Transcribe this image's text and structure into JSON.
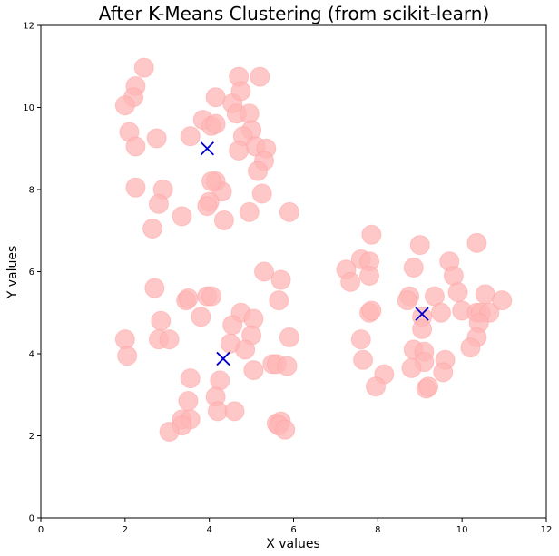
{
  "chart_data": {
    "type": "scatter",
    "title": "After K-Means Clustering (from scikit-learn)",
    "xlabel": "X values",
    "ylabel": "Y values",
    "xlim": [
      0,
      12
    ],
    "ylim": [
      0,
      12
    ],
    "xticks": [
      0,
      2,
      4,
      6,
      8,
      10,
      12
    ],
    "yticks": [
      0,
      2,
      4,
      6,
      8,
      10,
      12
    ],
    "grid": false,
    "series": [
      {
        "role": "points",
        "color": "#ffb6b6",
        "marker": "circle",
        "points": [
          [
            2.45,
            10.97
          ],
          [
            2.25,
            10.52
          ],
          [
            2.2,
            10.25
          ],
          [
            2.0,
            10.05
          ],
          [
            2.1,
            9.4
          ],
          [
            2.25,
            9.05
          ],
          [
            2.75,
            9.25
          ],
          [
            3.85,
            9.7
          ],
          [
            4.05,
            9.55
          ],
          [
            4.15,
            9.6
          ],
          [
            4.15,
            10.25
          ],
          [
            4.55,
            10.1
          ],
          [
            4.65,
            9.85
          ],
          [
            4.7,
            10.75
          ],
          [
            4.75,
            10.4
          ],
          [
            5.2,
            10.75
          ],
          [
            4.95,
            9.85
          ],
          [
            5.0,
            9.45
          ],
          [
            4.8,
            9.3
          ],
          [
            5.1,
            9.05
          ],
          [
            5.35,
            9.0
          ],
          [
            4.7,
            8.95
          ],
          [
            3.55,
            9.3
          ],
          [
            5.3,
            8.7
          ],
          [
            5.15,
            8.45
          ],
          [
            2.25,
            8.05
          ],
          [
            2.9,
            8.0
          ],
          [
            2.8,
            7.65
          ],
          [
            4.15,
            8.2
          ],
          [
            4.3,
            7.95
          ],
          [
            4.05,
            8.2
          ],
          [
            4.0,
            7.7
          ],
          [
            3.95,
            7.6
          ],
          [
            5.25,
            7.9
          ],
          [
            3.35,
            7.35
          ],
          [
            4.35,
            7.25
          ],
          [
            4.95,
            7.45
          ],
          [
            5.9,
            7.45
          ],
          [
            2.65,
            7.05
          ],
          [
            2.7,
            5.6
          ],
          [
            3.45,
            5.3
          ],
          [
            3.5,
            5.35
          ],
          [
            3.95,
            5.4
          ],
          [
            4.05,
            5.4
          ],
          [
            3.8,
            4.9
          ],
          [
            4.75,
            5.0
          ],
          [
            5.05,
            4.85
          ],
          [
            4.55,
            4.7
          ],
          [
            5.3,
            6.0
          ],
          [
            5.7,
            5.8
          ],
          [
            5.65,
            5.3
          ],
          [
            5.9,
            4.4
          ],
          [
            5.0,
            4.45
          ],
          [
            4.5,
            4.25
          ],
          [
            4.85,
            4.1
          ],
          [
            2.85,
            4.8
          ],
          [
            2.8,
            4.35
          ],
          [
            3.05,
            4.35
          ],
          [
            2.0,
            4.35
          ],
          [
            2.05,
            3.95
          ],
          [
            5.05,
            3.6
          ],
          [
            5.5,
            3.75
          ],
          [
            5.6,
            3.75
          ],
          [
            5.85,
            3.7
          ],
          [
            3.55,
            3.4
          ],
          [
            4.25,
            3.35
          ],
          [
            3.5,
            2.85
          ],
          [
            4.15,
            2.95
          ],
          [
            4.2,
            2.6
          ],
          [
            4.6,
            2.6
          ],
          [
            3.35,
            2.4
          ],
          [
            3.55,
            2.4
          ],
          [
            3.35,
            2.25
          ],
          [
            3.05,
            2.1
          ],
          [
            5.6,
            2.3
          ],
          [
            5.7,
            2.35
          ],
          [
            5.65,
            2.25
          ],
          [
            5.8,
            2.15
          ],
          [
            7.85,
            6.9
          ],
          [
            7.6,
            6.3
          ],
          [
            7.8,
            6.25
          ],
          [
            7.25,
            6.05
          ],
          [
            7.35,
            5.75
          ],
          [
            7.8,
            5.9
          ],
          [
            7.8,
            5.0
          ],
          [
            7.85,
            5.05
          ],
          [
            9.0,
            6.65
          ],
          [
            8.85,
            6.1
          ],
          [
            8.75,
            5.4
          ],
          [
            8.7,
            5.3
          ],
          [
            9.35,
            5.4
          ],
          [
            9.05,
            4.9
          ],
          [
            9.05,
            4.6
          ],
          [
            9.7,
            6.25
          ],
          [
            9.8,
            5.9
          ],
          [
            9.9,
            5.5
          ],
          [
            10.35,
            6.7
          ],
          [
            10.55,
            5.45
          ],
          [
            10.0,
            5.05
          ],
          [
            10.35,
            5.0
          ],
          [
            10.45,
            5.0
          ],
          [
            10.65,
            5.0
          ],
          [
            10.95,
            5.3
          ],
          [
            9.5,
            5.0
          ],
          [
            10.4,
            4.75
          ],
          [
            10.35,
            4.4
          ],
          [
            10.2,
            4.15
          ],
          [
            7.6,
            4.35
          ],
          [
            7.65,
            3.85
          ],
          [
            8.85,
            4.1
          ],
          [
            9.1,
            4.05
          ],
          [
            9.1,
            3.8
          ],
          [
            8.8,
            3.65
          ],
          [
            9.6,
            3.85
          ],
          [
            9.55,
            3.55
          ],
          [
            8.15,
            3.5
          ],
          [
            7.95,
            3.2
          ],
          [
            9.15,
            3.15
          ],
          [
            9.2,
            3.2
          ]
        ]
      },
      {
        "role": "centroids",
        "color": "#0000cc",
        "marker": "x",
        "points": [
          [
            3.95,
            9.0
          ],
          [
            4.33,
            3.88
          ],
          [
            9.05,
            4.97
          ]
        ]
      }
    ]
  }
}
